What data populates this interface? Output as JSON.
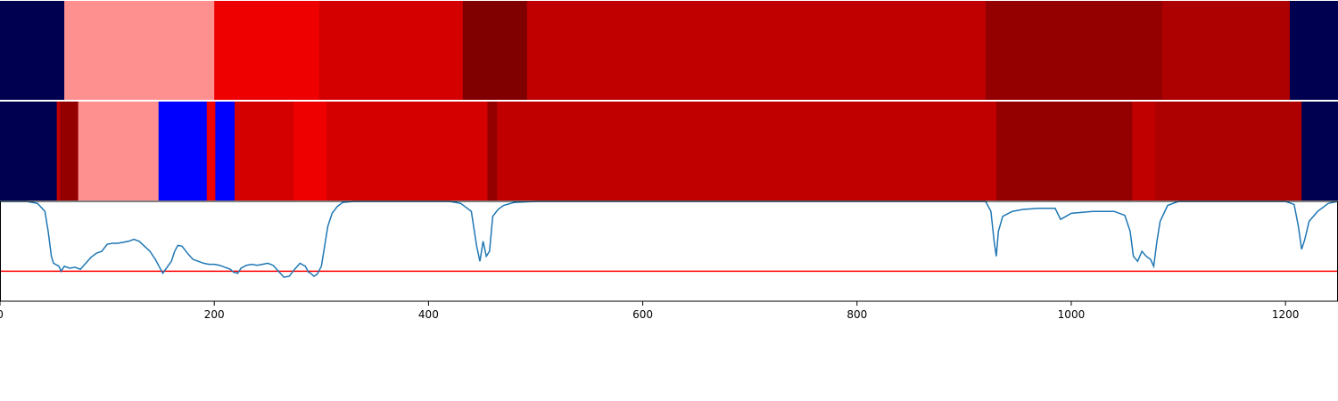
{
  "chart_data": {
    "type": "heatmap",
    "xlim": [
      0,
      1249
    ],
    "x_ticks": [
      0,
      200,
      400,
      600,
      800,
      1000,
      1200
    ],
    "x_tick_labels": [
      "0",
      "200",
      "400",
      "600",
      "800",
      "1000",
      "1200"
    ],
    "tracks": [
      {
        "segments": [
          {
            "start": 0,
            "end": 60,
            "color": "#000050"
          },
          {
            "start": 60,
            "end": 200,
            "color": "#ff9090"
          },
          {
            "start": 200,
            "end": 298,
            "color": "#ee0000"
          },
          {
            "start": 298,
            "end": 432,
            "color": "#d40000"
          },
          {
            "start": 432,
            "end": 492,
            "color": "#800000"
          },
          {
            "start": 492,
            "end": 920,
            "color": "#c00000"
          },
          {
            "start": 920,
            "end": 1085,
            "color": "#940000"
          },
          {
            "start": 1085,
            "end": 1204,
            "color": "#ad0000"
          },
          {
            "start": 1204,
            "end": 1249,
            "color": "#000050"
          }
        ]
      },
      {
        "segments": [
          {
            "start": 0,
            "end": 53,
            "color": "#000050"
          },
          {
            "start": 53,
            "end": 56,
            "color": "#c00000"
          },
          {
            "start": 56,
            "end": 73,
            "color": "#940000"
          },
          {
            "start": 73,
            "end": 148,
            "color": "#ff9090"
          },
          {
            "start": 148,
            "end": 193,
            "color": "#0000ff"
          },
          {
            "start": 193,
            "end": 201,
            "color": "#ee0000"
          },
          {
            "start": 201,
            "end": 219,
            "color": "#0000ff"
          },
          {
            "start": 219,
            "end": 274,
            "color": "#d40000"
          },
          {
            "start": 274,
            "end": 305,
            "color": "#ee0000"
          },
          {
            "start": 305,
            "end": 455,
            "color": "#d40000"
          },
          {
            "start": 455,
            "end": 464,
            "color": "#940000"
          },
          {
            "start": 464,
            "end": 930,
            "color": "#c00000"
          },
          {
            "start": 930,
            "end": 1057,
            "color": "#940000"
          },
          {
            "start": 1057,
            "end": 1078,
            "color": "#c00000"
          },
          {
            "start": 1078,
            "end": 1215,
            "color": "#ad0000"
          },
          {
            "start": 1215,
            "end": 1249,
            "color": "#000050"
          }
        ]
      }
    ],
    "line": {
      "color": "#1f77b4",
      "ylim": [
        0,
        1
      ],
      "threshold": {
        "value": 0.3,
        "color": "#ff0000"
      },
      "points": [
        [
          0,
          1.0
        ],
        [
          25,
          1.0
        ],
        [
          35,
          0.98
        ],
        [
          42,
          0.9
        ],
        [
          45,
          0.7
        ],
        [
          48,
          0.45
        ],
        [
          50,
          0.38
        ],
        [
          55,
          0.35
        ],
        [
          57,
          0.3
        ],
        [
          60,
          0.35
        ],
        [
          65,
          0.33
        ],
        [
          70,
          0.34
        ],
        [
          75,
          0.32
        ],
        [
          80,
          0.38
        ],
        [
          85,
          0.44
        ],
        [
          90,
          0.48
        ],
        [
          95,
          0.5
        ],
        [
          100,
          0.57
        ],
        [
          105,
          0.58
        ],
        [
          110,
          0.58
        ],
        [
          115,
          0.59
        ],
        [
          120,
          0.6
        ],
        [
          125,
          0.62
        ],
        [
          130,
          0.6
        ],
        [
          135,
          0.55
        ],
        [
          140,
          0.5
        ],
        [
          145,
          0.42
        ],
        [
          148,
          0.36
        ],
        [
          150,
          0.32
        ],
        [
          152,
          0.28
        ],
        [
          156,
          0.34
        ],
        [
          160,
          0.4
        ],
        [
          163,
          0.5
        ],
        [
          166,
          0.56
        ],
        [
          170,
          0.55
        ],
        [
          175,
          0.48
        ],
        [
          180,
          0.42
        ],
        [
          185,
          0.4
        ],
        [
          190,
          0.38
        ],
        [
          195,
          0.37
        ],
        [
          200,
          0.37
        ],
        [
          205,
          0.36
        ],
        [
          210,
          0.34
        ],
        [
          215,
          0.32
        ],
        [
          218,
          0.29
        ],
        [
          222,
          0.28
        ],
        [
          225,
          0.33
        ],
        [
          230,
          0.36
        ],
        [
          235,
          0.37
        ],
        [
          240,
          0.36
        ],
        [
          245,
          0.37
        ],
        [
          250,
          0.38
        ],
        [
          255,
          0.36
        ],
        [
          260,
          0.3
        ],
        [
          265,
          0.24
        ],
        [
          270,
          0.25
        ],
        [
          275,
          0.32
        ],
        [
          280,
          0.38
        ],
        [
          285,
          0.35
        ],
        [
          288,
          0.29
        ],
        [
          290,
          0.28
        ],
        [
          293,
          0.25
        ],
        [
          296,
          0.27
        ],
        [
          300,
          0.35
        ],
        [
          303,
          0.55
        ],
        [
          306,
          0.75
        ],
        [
          310,
          0.88
        ],
        [
          315,
          0.95
        ],
        [
          320,
          0.99
        ],
        [
          330,
          1.0
        ],
        [
          420,
          1.0
        ],
        [
          430,
          0.98
        ],
        [
          440,
          0.9
        ],
        [
          445,
          0.55
        ],
        [
          448,
          0.4
        ],
        [
          451,
          0.6
        ],
        [
          454,
          0.45
        ],
        [
          457,
          0.5
        ],
        [
          460,
          0.85
        ],
        [
          465,
          0.92
        ],
        [
          470,
          0.96
        ],
        [
          480,
          0.99
        ],
        [
          500,
          1.0
        ],
        [
          920,
          1.0
        ],
        [
          925,
          0.9
        ],
        [
          928,
          0.6
        ],
        [
          930,
          0.45
        ],
        [
          932,
          0.7
        ],
        [
          936,
          0.85
        ],
        [
          945,
          0.9
        ],
        [
          955,
          0.92
        ],
        [
          970,
          0.93
        ],
        [
          985,
          0.93
        ],
        [
          990,
          0.82
        ],
        [
          995,
          0.85
        ],
        [
          1000,
          0.88
        ],
        [
          1020,
          0.9
        ],
        [
          1040,
          0.9
        ],
        [
          1050,
          0.86
        ],
        [
          1055,
          0.7
        ],
        [
          1058,
          0.45
        ],
        [
          1062,
          0.4
        ],
        [
          1066,
          0.5
        ],
        [
          1070,
          0.45
        ],
        [
          1074,
          0.42
        ],
        [
          1077,
          0.35
        ],
        [
          1080,
          0.6
        ],
        [
          1083,
          0.8
        ],
        [
          1090,
          0.96
        ],
        [
          1100,
          1.0
        ],
        [
          1200,
          1.0
        ],
        [
          1208,
          0.97
        ],
        [
          1212,
          0.75
        ],
        [
          1215,
          0.52
        ],
        [
          1218,
          0.62
        ],
        [
          1222,
          0.8
        ],
        [
          1230,
          0.9
        ],
        [
          1240,
          0.98
        ],
        [
          1249,
          1.0
        ]
      ]
    }
  }
}
